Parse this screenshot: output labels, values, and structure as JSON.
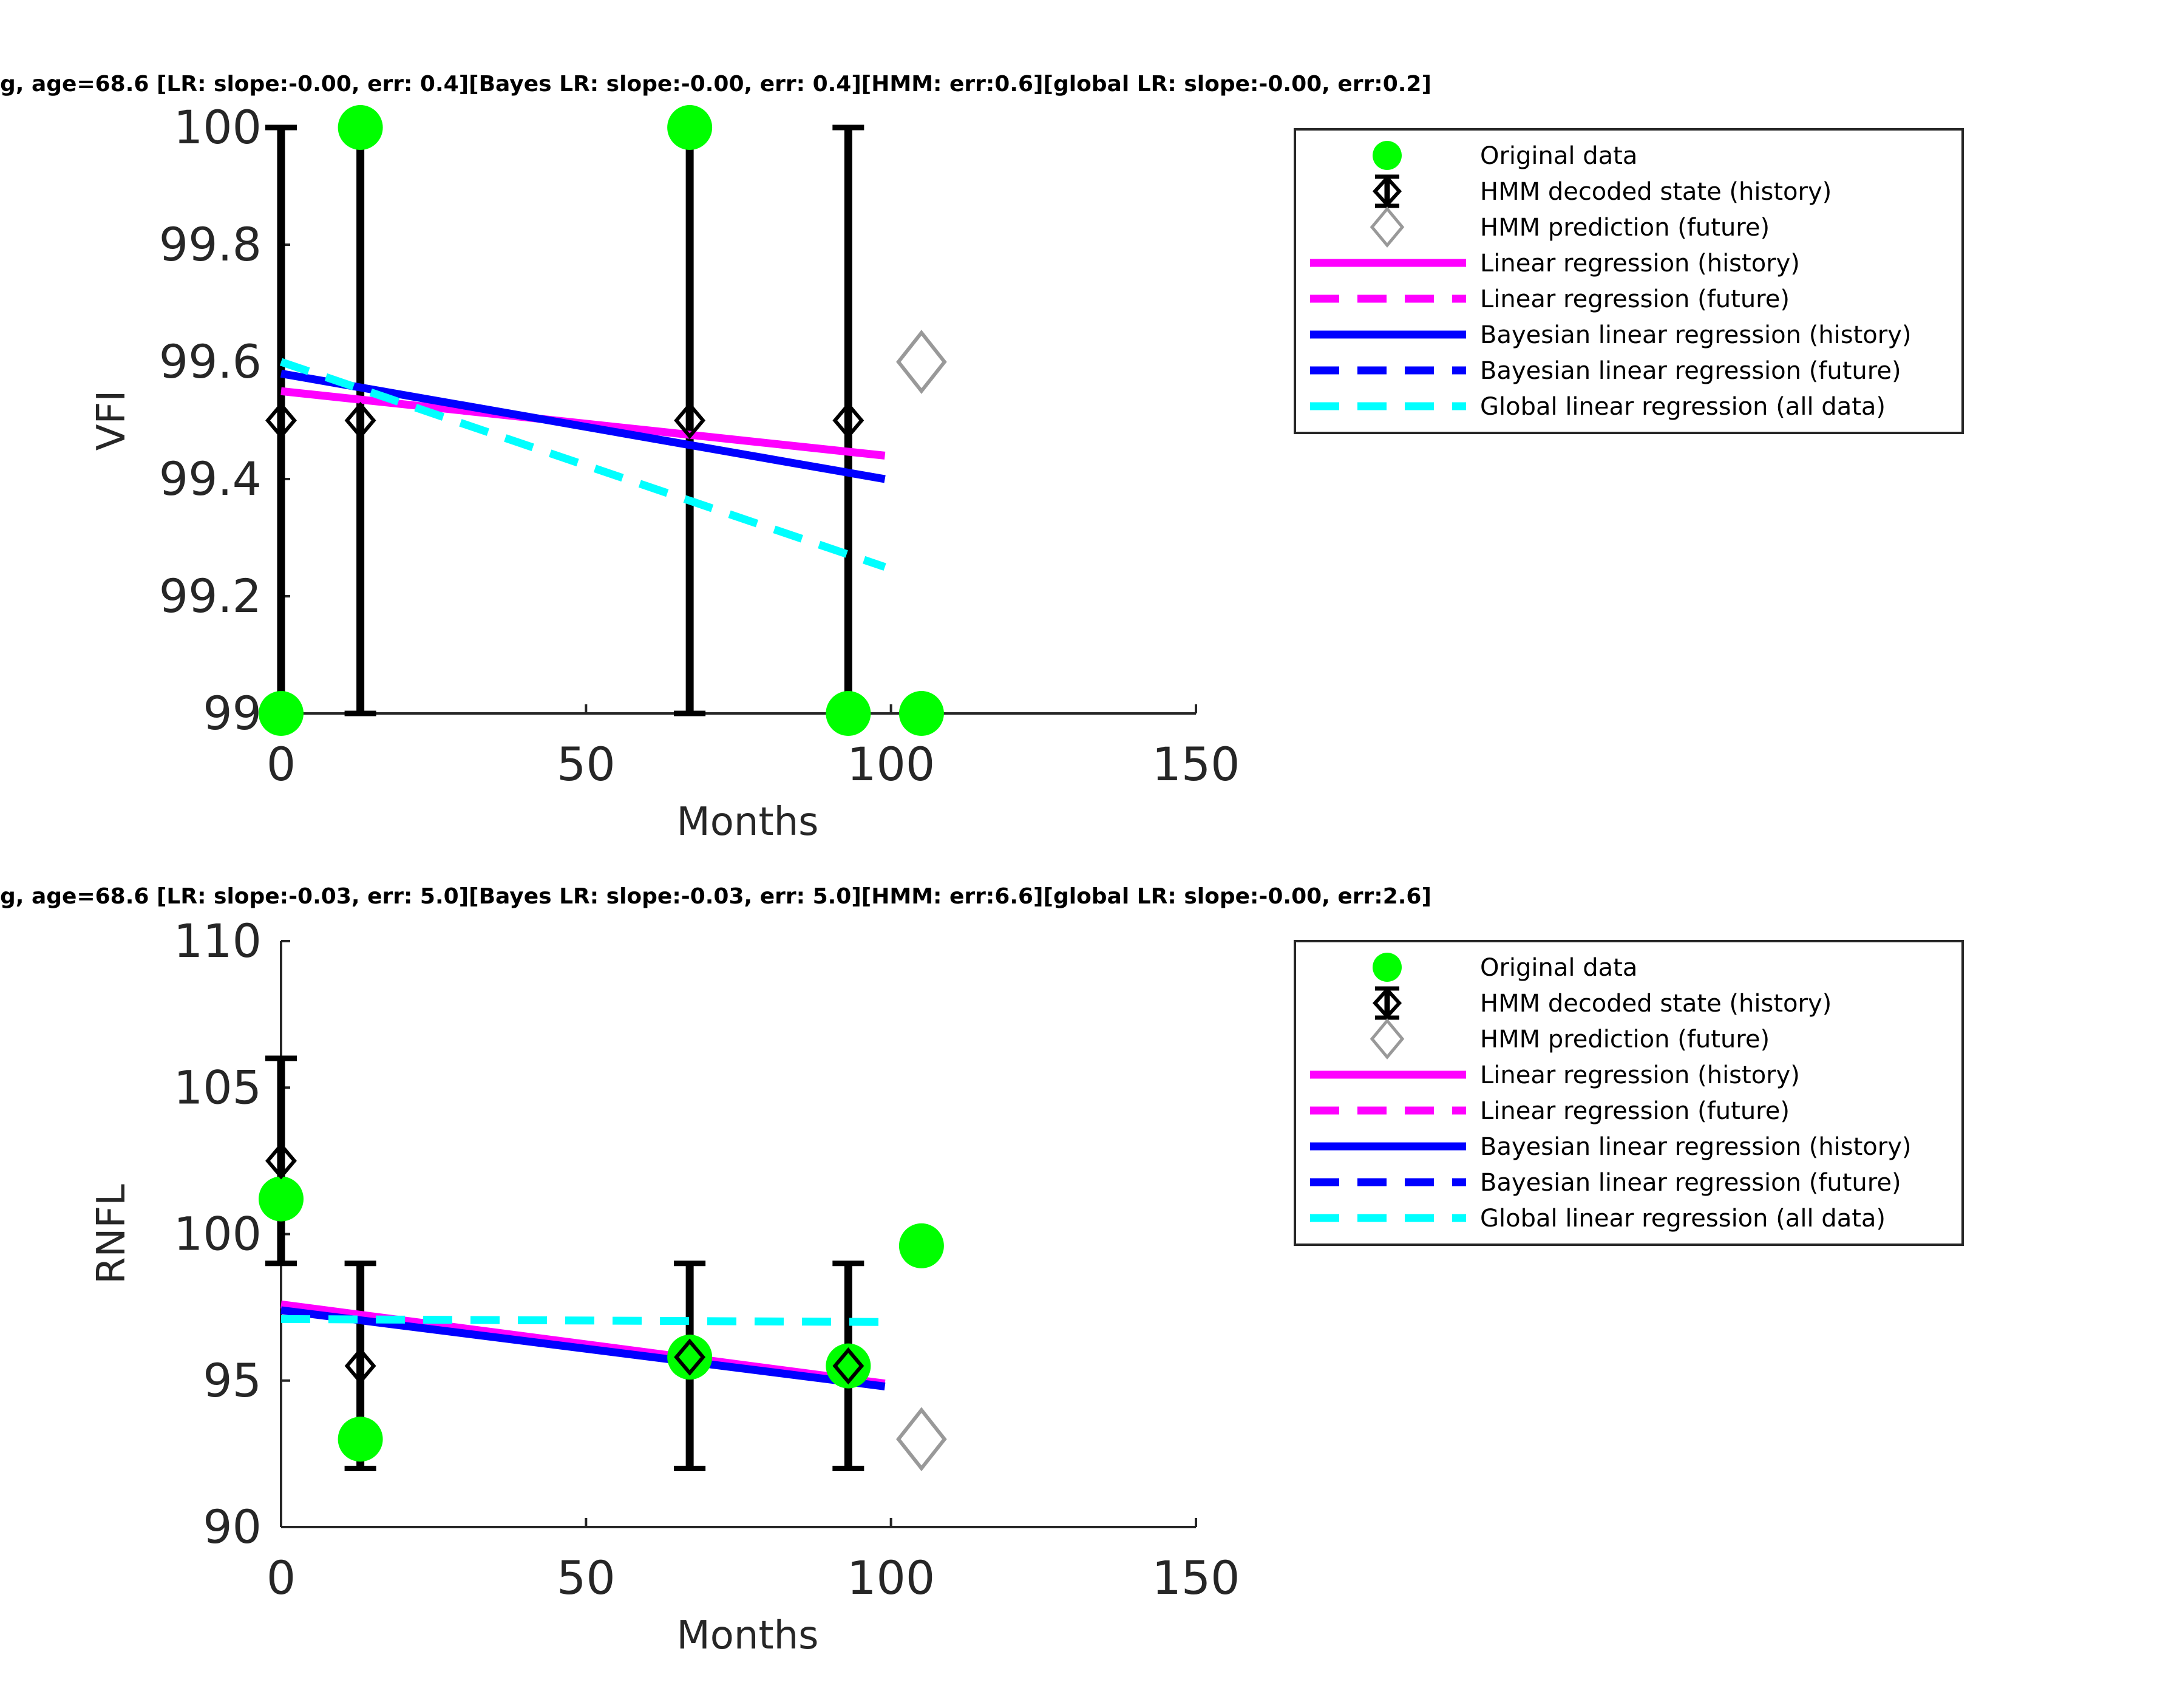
{
  "chart_data": [
    {
      "type": "scatter",
      "title": "g, age=68.6 [LR: slope:-0.00, err: 0.4][Bayes LR: slope:-0.00, err: 0.4][HMM: err:0.6][global LR: slope:-0.00, err:0.2]",
      "xlabel": "Months",
      "ylabel": "VFI",
      "xlim": [
        0,
        150
      ],
      "ylim": [
        99,
        100
      ],
      "xticks": [
        "0",
        "50",
        "100",
        "150"
      ],
      "yticks": [
        "99",
        "99.2",
        "99.4",
        "99.6",
        "99.8",
        "100"
      ],
      "original_data": {
        "x": [
          0,
          13,
          67,
          93,
          105
        ],
        "y": [
          99,
          100,
          100,
          99,
          99
        ]
      },
      "hmm_history": {
        "x": [
          0,
          13,
          67,
          93
        ],
        "y": [
          99.5,
          99.5,
          99.5,
          99.5
        ],
        "err_low": [
          99,
          99,
          99,
          99
        ],
        "err_high": [
          100,
          100,
          100,
          100
        ]
      },
      "hmm_prediction": {
        "x": [
          105
        ],
        "y": [
          99.6
        ]
      },
      "lr_history": {
        "x": [
          0,
          99
        ],
        "y": [
          99.55,
          99.44
        ]
      },
      "blr_history": {
        "x": [
          0,
          99
        ],
        "y": [
          99.58,
          99.4
        ]
      },
      "global_lr": {
        "x": [
          0,
          99
        ],
        "y": [
          99.6,
          99.25
        ]
      },
      "legend": {
        "entries": [
          "Original data",
          "HMM decoded state (history)",
          "HMM prediction (future)",
          "Linear regression (history)",
          "Linear regression (future)",
          "Bayesian linear regression (history)",
          "Bayesian linear regression (future)",
          "Global linear regression (all data)"
        ],
        "placement": "outside-right"
      },
      "grid": false
    },
    {
      "type": "scatter",
      "title": "g, age=68.6 [LR: slope:-0.03, err: 5.0][Bayes LR: slope:-0.03, err: 5.0][HMM: err:6.6][global LR: slope:-0.00, err:2.6]",
      "xlabel": "Months",
      "ylabel": "RNFL",
      "xlim": [
        0,
        150
      ],
      "ylim": [
        90,
        110
      ],
      "xticks": [
        "0",
        "50",
        "100",
        "150"
      ],
      "yticks": [
        "90",
        "95",
        "100",
        "105",
        "110"
      ],
      "original_data": {
        "x": [
          0,
          13,
          67,
          93,
          105
        ],
        "y": [
          101.2,
          93,
          95.8,
          95.5,
          99.6
        ]
      },
      "hmm_history": {
        "x": [
          0,
          13,
          67,
          93
        ],
        "y": [
          102.5,
          95.5,
          95.8,
          95.5
        ],
        "err_low": [
          99,
          92,
          92,
          92
        ],
        "err_high": [
          106,
          99,
          99,
          99
        ]
      },
      "hmm_prediction": {
        "x": [
          105
        ],
        "y": [
          93
        ]
      },
      "lr_history": {
        "x": [
          0,
          99
        ],
        "y": [
          97.6,
          94.9
        ]
      },
      "blr_history": {
        "x": [
          0,
          99
        ],
        "y": [
          97.4,
          94.8
        ]
      },
      "global_lr": {
        "x": [
          0,
          99
        ],
        "y": [
          97.1,
          97.0
        ]
      },
      "legend": {
        "entries": [
          "Original data",
          "HMM decoded state (history)",
          "HMM prediction (future)",
          "Linear regression (history)",
          "Linear regression (future)",
          "Bayesian linear regression (history)",
          "Bayesian linear regression (future)",
          "Global linear regression (all data)"
        ],
        "placement": "outside-right"
      },
      "grid": false
    }
  ],
  "colors": {
    "original": "#00ff00",
    "hmm": "#000000",
    "prediction": "#999999",
    "lr": "#ff00ff",
    "blr": "#0000ff",
    "global": "#00ffff"
  }
}
